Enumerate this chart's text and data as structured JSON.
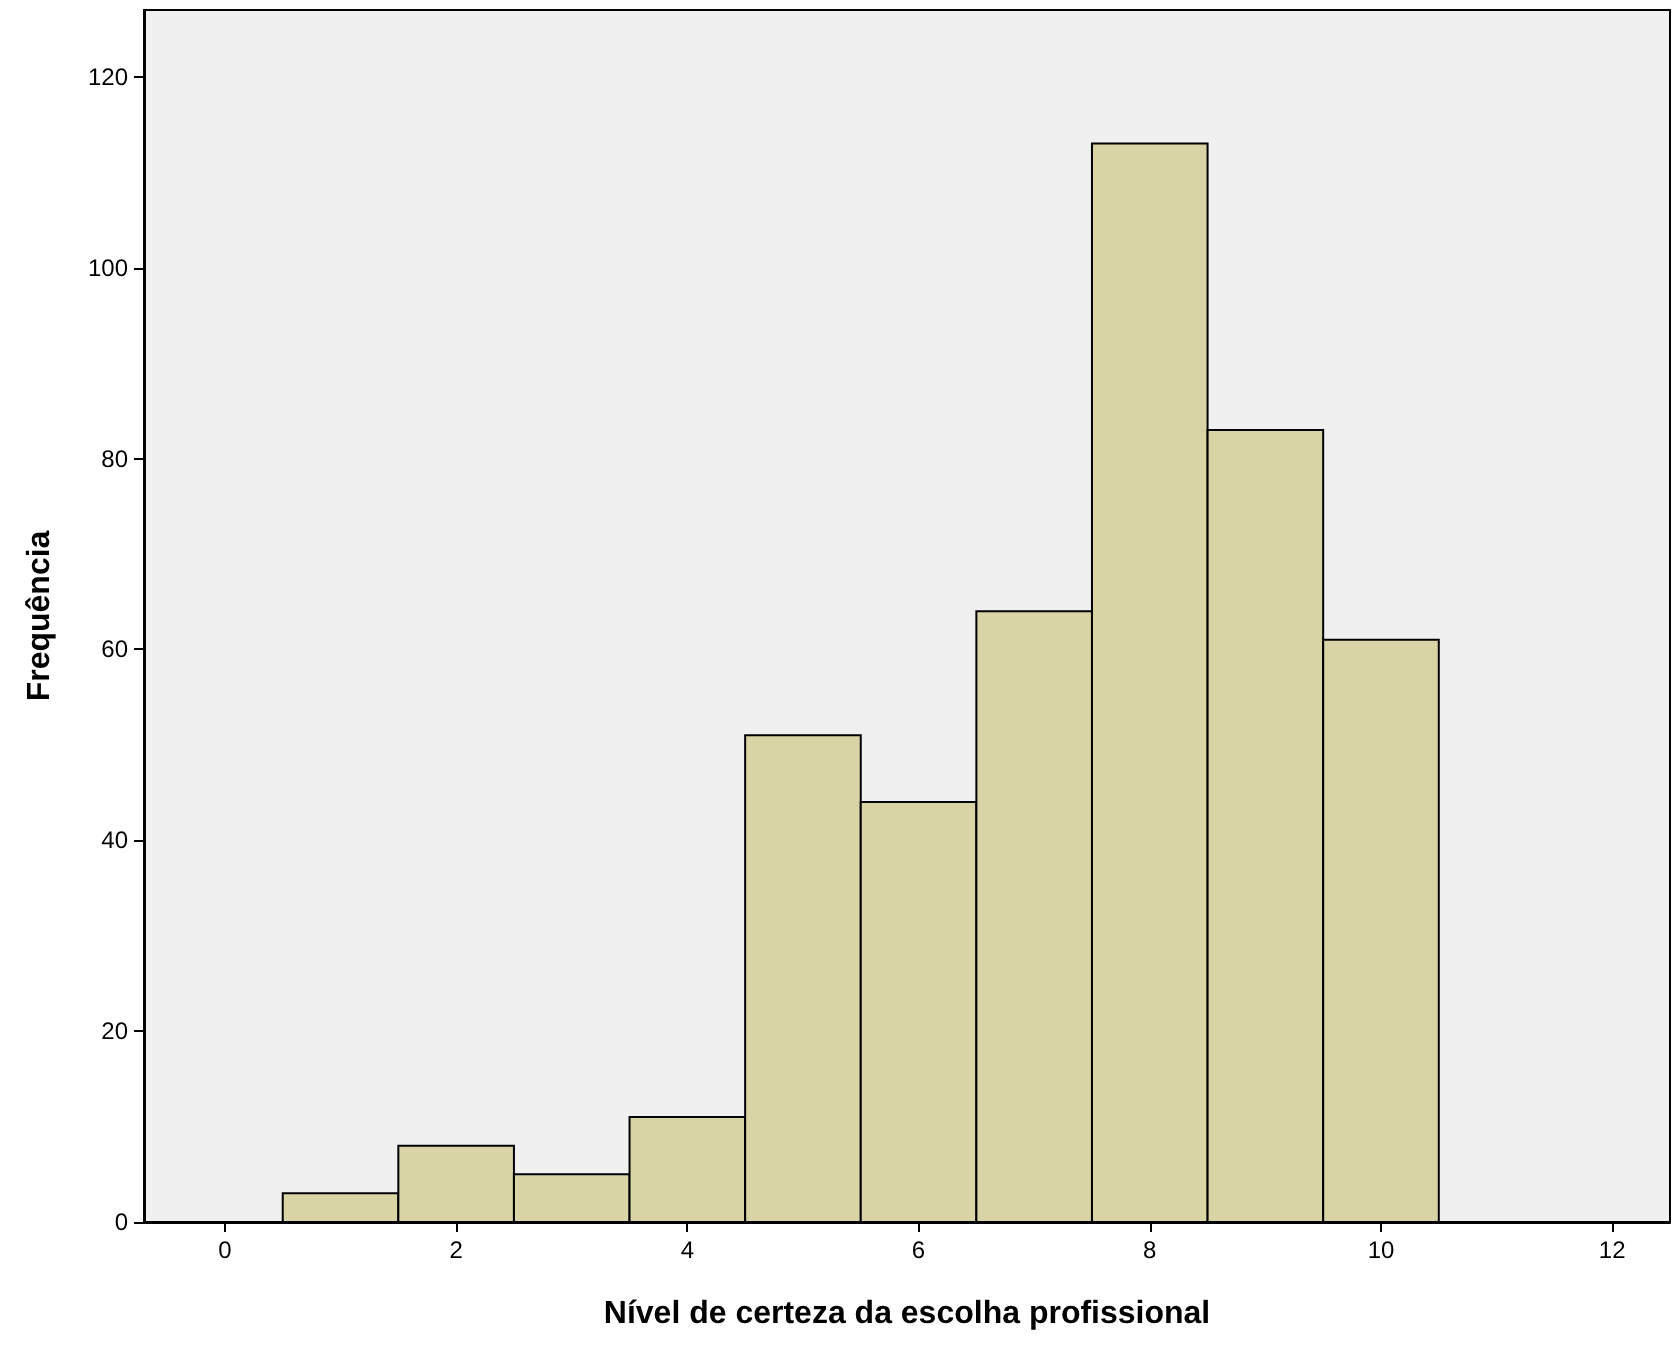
{
  "chart_data": {
    "type": "histogram",
    "xlabel": "Nível de certeza da escolha profissional",
    "ylabel": "Frequência",
    "bins": [
      0.5,
      1.5,
      2.5,
      3.5,
      4.5,
      5.5,
      6.5,
      7.5,
      8.5,
      9.5,
      10.5
    ],
    "values": [
      3,
      8,
      5,
      11,
      51,
      44,
      64,
      113,
      83,
      61
    ],
    "color": "#d9d4a5",
    "xlim": [
      -0.7,
      12.5
    ],
    "xticks": [
      0,
      2,
      4,
      6,
      8,
      10,
      12
    ],
    "ylim": [
      0,
      127
    ],
    "yticks": [
      0,
      20,
      40,
      60,
      80,
      100,
      120
    ],
    "grid": false
  }
}
